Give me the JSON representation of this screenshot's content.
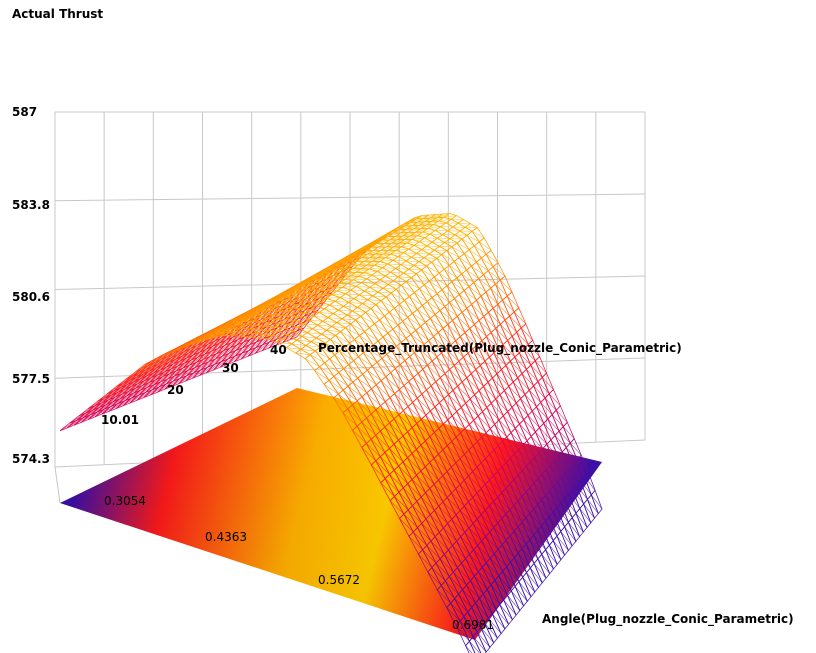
{
  "chart_data": {
    "type": "surface",
    "title": "Actual Thrust",
    "zlabel": "Actual Thrust",
    "xlabel": "Angle(Plug_nozzle_Conic_Parametric)",
    "ylabel": "Percentage_Truncated(Plug_nozzle_Conic_Parametric)",
    "x_ticks": [
      "0.3054",
      "0.4363",
      "0.5672",
      "0.6981"
    ],
    "y_ticks": [
      "10.01",
      "20",
      "30",
      "40"
    ],
    "z_ticks": [
      "574.3",
      "577.5",
      "580.6",
      "583.8",
      "587"
    ],
    "xlim": [
      0.25,
      0.72
    ],
    "ylim": [
      10.01,
      47
    ],
    "zlim": [
      574.3,
      587
    ],
    "surface_model": {
      "description": "thrust rises with angle to a peak near 0.49 then falls; weak dependence on truncation",
      "x": [
        0.25,
        0.3054,
        0.35,
        0.4,
        0.4363,
        0.49,
        0.53,
        0.5672,
        0.6,
        0.6981,
        0.72
      ],
      "z_at_y_mid": [
        577.9,
        580.4,
        582.4,
        583.9,
        584.8,
        585.3,
        584.9,
        583.2,
        581.2,
        575.0,
        573.4
      ]
    },
    "colormap": [
      "#3b0fa8",
      "#d1005f",
      "#ff1c1c",
      "#ff8a00",
      "#ffd000"
    ],
    "grid": true
  }
}
